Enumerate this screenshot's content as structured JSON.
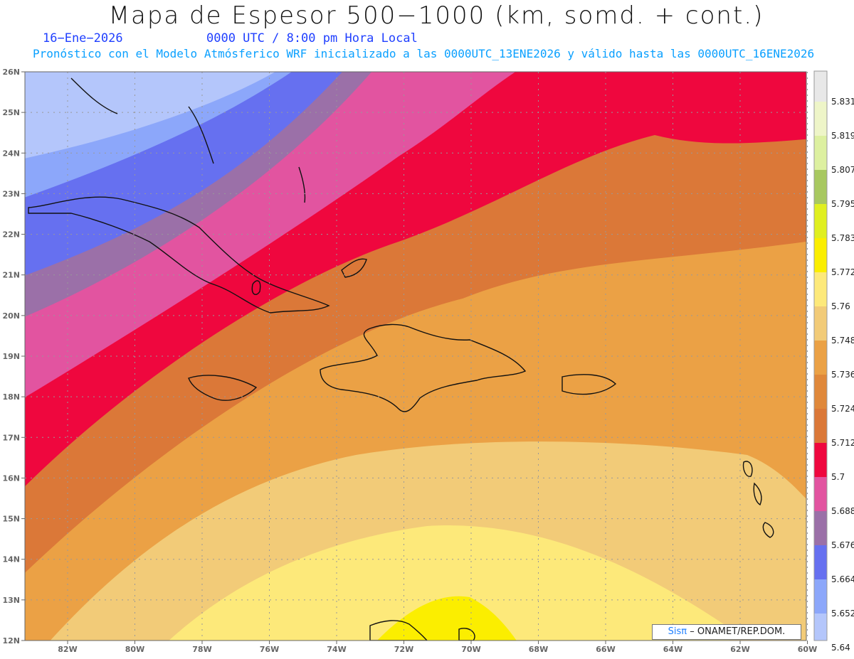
{
  "header": {
    "title": "Mapa de Espesor 500−1000 (km, somd. + cont.)",
    "date": "16−Ene−2026",
    "time": "0000 UTC / 8:00 pm Hora Local",
    "forecast": "Pronóstico con el Modelo Atmósferico WRF inicializado a las 0000UTC_13ENE2026 y válido hasta las  0000UTC_16ENE2026"
  },
  "map": {
    "lat_labels": [
      "26N",
      "25N",
      "24N",
      "23N",
      "22N",
      "21N",
      "20N",
      "19N",
      "18N",
      "17N",
      "16N",
      "15N",
      "14N",
      "13N",
      "12N"
    ],
    "lon_labels": [
      "82W",
      "80W",
      "78W",
      "76W",
      "74W",
      "72W",
      "70W",
      "68W",
      "66W",
      "64W",
      "62W",
      "60W"
    ],
    "grid": true
  },
  "colorbar": {
    "labels": [
      "5.831",
      "5.819",
      "5.807",
      "5.795",
      "5.783",
      "5.772",
      "5.76",
      "5.748",
      "5.736",
      "5.724",
      "5.712",
      "5.7",
      "5.688",
      "5.676",
      "5.664",
      "5.652",
      "5.64"
    ],
    "colors": [
      "#e8e8e8",
      "#eef5c8",
      "#ddf0a0",
      "#a8c860",
      "#e0ef20",
      "#fbee00",
      "#fde97a",
      "#f2cb78",
      "#eba145",
      "#e0883a",
      "#db7838",
      "#ef073e",
      "#e254a0",
      "#9b70a8",
      "#6670f0",
      "#8ca7fa",
      "#b4c6fb"
    ]
  },
  "credit": {
    "logo": "Sisπ",
    "text": "– ONAMET/REP.DOM."
  }
}
